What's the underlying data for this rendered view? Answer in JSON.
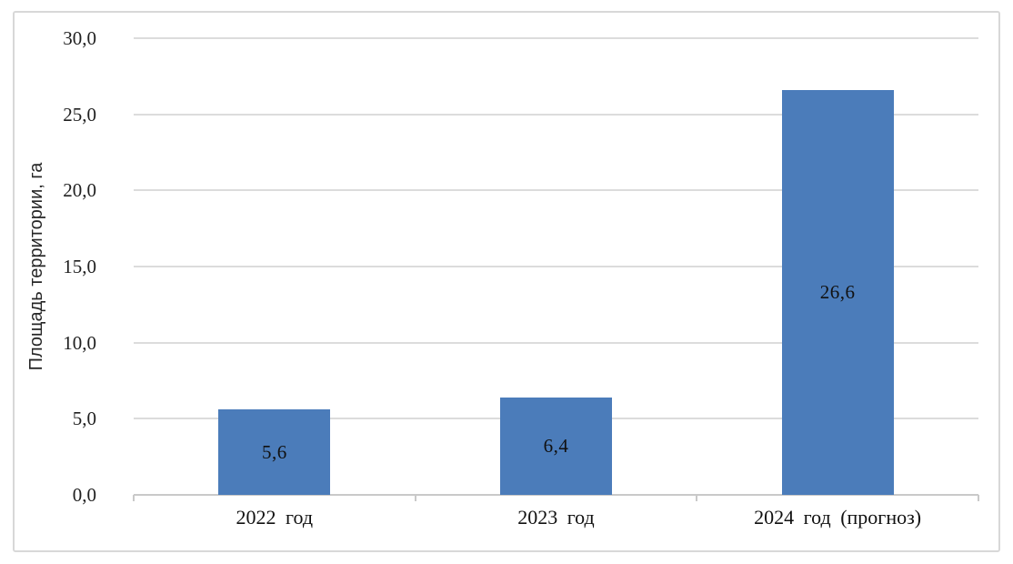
{
  "chart_data": {
    "type": "bar",
    "title": "",
    "categories": [
      "2022 год",
      "2023 год",
      "2024 год (прогноз)"
    ],
    "values": [
      5.6,
      6.4,
      26.6
    ],
    "value_labels": [
      "5,6",
      "6,4",
      "26,6"
    ],
    "series": [
      {
        "name": "Площадь территории",
        "values": [
          5.6,
          6.4,
          26.6
        ]
      }
    ],
    "xlabel": "",
    "ylabel": "Площадь территории, га",
    "ylim": [
      0,
      30
    ],
    "ytick_step": 5,
    "ytick_labels": [
      "0,0",
      "5,0",
      "10,0",
      "15,0",
      "20,0",
      "25,0",
      "30,0"
    ],
    "grid": true,
    "legend_position": "none",
    "decimal_separator": ",",
    "colors": {
      "bar_fill": "#4B7CBA",
      "gridline": "#dcdcdc",
      "axis": "#c9c9c9",
      "figure_border": "#d8d8d8",
      "text": "#111111"
    }
  }
}
